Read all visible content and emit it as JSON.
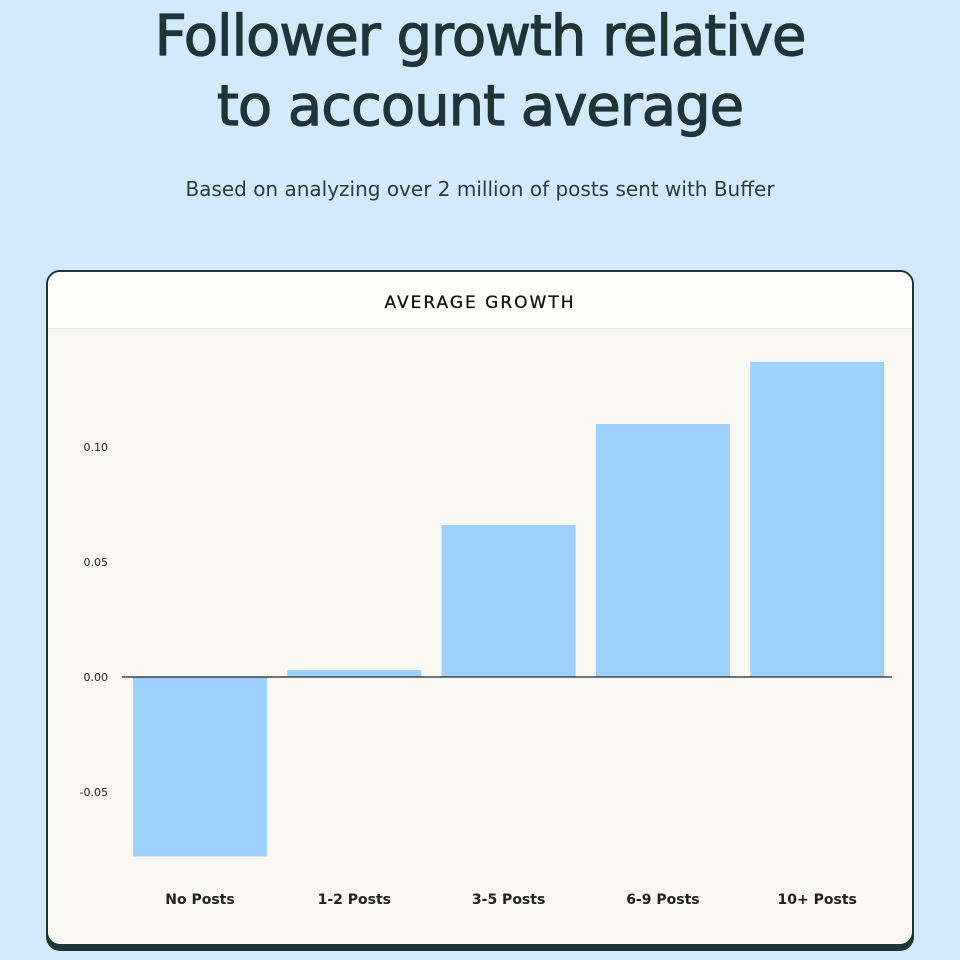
{
  "header": {
    "title_line1": "Follower growth relative",
    "title_line2": "to account average",
    "subtitle": "Based on analyzing over 2 million of posts sent with Buffer"
  },
  "colors": {
    "background": "#d3eafc",
    "bar": "#9dd0fc",
    "card": "#f9f8f3",
    "ink": "#1f3436"
  },
  "chart_data": {
    "type": "bar",
    "title": "AVERAGE GROWTH",
    "categories": [
      "No Posts",
      "1-2 Posts",
      "3-5 Posts",
      "6-9 Posts",
      "10+ Posts"
    ],
    "values": [
      -0.078,
      0.003,
      0.066,
      0.11,
      0.137
    ],
    "yticks": [
      0.1,
      0.05,
      0.0,
      -0.05
    ],
    "ytick_labels": [
      "0.10",
      "0.05",
      "0.00",
      "-0.05"
    ],
    "ylim": [
      -0.08,
      0.14
    ],
    "xlabel": "",
    "ylabel": "",
    "grid": false,
    "legend": "none"
  }
}
